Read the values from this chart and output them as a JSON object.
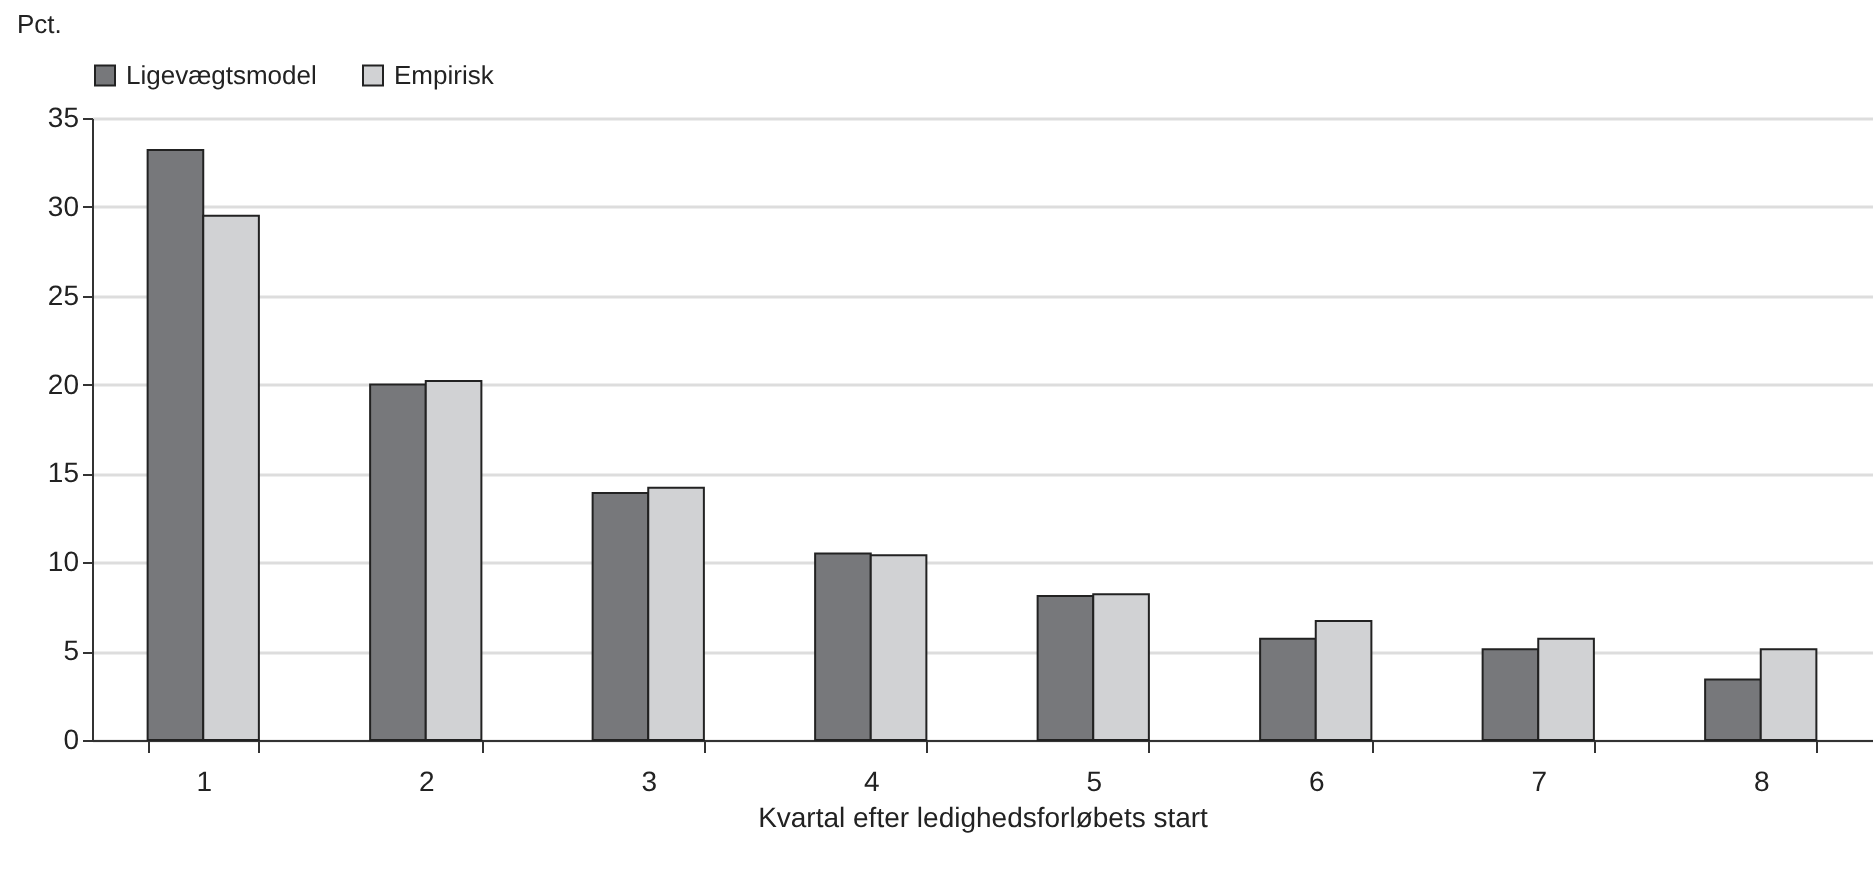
{
  "chart_data": {
    "type": "bar",
    "xlabel": "Kvartal efter ledighedsforløbets start",
    "ylabel": "Pct.",
    "categories": [
      "1",
      "2",
      "3",
      "4",
      "5",
      "6",
      "7",
      "8"
    ],
    "series": [
      {
        "name": "Ligevægtsmodel",
        "color": "#77787b",
        "values": [
          33.2,
          20.0,
          13.9,
          10.5,
          8.1,
          5.7,
          5.1,
          3.4
        ]
      },
      {
        "name": "Empirisk",
        "color": "#d1d2d4",
        "values": [
          29.5,
          20.2,
          14.2,
          10.4,
          8.2,
          6.7,
          5.7,
          5.1
        ]
      }
    ],
    "ylim": [
      0,
      35
    ],
    "yticks": [
      0,
      5,
      10,
      15,
      20,
      25,
      30,
      35
    ],
    "grid": "y",
    "legend": "top"
  }
}
